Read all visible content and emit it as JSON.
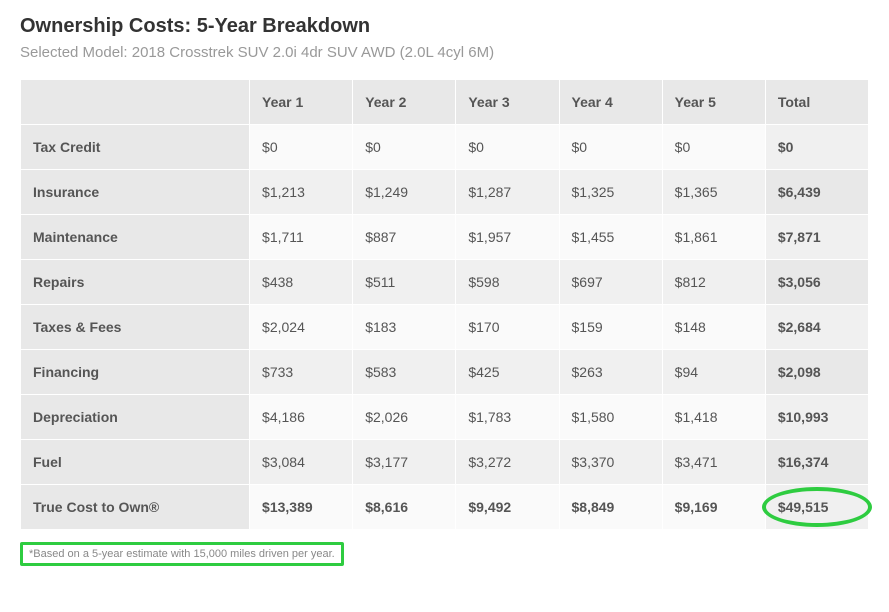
{
  "header": {
    "title": "Ownership Costs: 5-Year Breakdown",
    "subtitle": "Selected Model: 2018 Crosstrek SUV 2.0i 4dr SUV AWD (2.0L 4cyl 6M)"
  },
  "table": {
    "columns": [
      "",
      "Year 1",
      "Year 2",
      "Year 3",
      "Year 4",
      "Year 5",
      "Total"
    ],
    "rows": [
      {
        "label": "Tax Credit",
        "y1": "$0",
        "y2": "$0",
        "y3": "$0",
        "y4": "$0",
        "y5": "$0",
        "total": "$0"
      },
      {
        "label": "Insurance",
        "y1": "$1,213",
        "y2": "$1,249",
        "y3": "$1,287",
        "y4": "$1,325",
        "y5": "$1,365",
        "total": "$6,439"
      },
      {
        "label": "Maintenance",
        "y1": "$1,711",
        "y2": "$887",
        "y3": "$1,957",
        "y4": "$1,455",
        "y5": "$1,861",
        "total": "$7,871"
      },
      {
        "label": "Repairs",
        "y1": "$438",
        "y2": "$511",
        "y3": "$598",
        "y4": "$697",
        "y5": "$812",
        "total": "$3,056"
      },
      {
        "label": "Taxes & Fees",
        "y1": "$2,024",
        "y2": "$183",
        "y3": "$170",
        "y4": "$159",
        "y5": "$148",
        "total": "$2,684"
      },
      {
        "label": "Financing",
        "y1": "$733",
        "y2": "$583",
        "y3": "$425",
        "y4": "$263",
        "y5": "$94",
        "total": "$2,098"
      },
      {
        "label": "Depreciation",
        "y1": "$4,186",
        "y2": "$2,026",
        "y3": "$1,783",
        "y4": "$1,580",
        "y5": "$1,418",
        "total": "$10,993"
      },
      {
        "label": "Fuel",
        "y1": "$3,084",
        "y2": "$3,177",
        "y3": "$3,272",
        "y4": "$3,370",
        "y5": "$3,471",
        "total": "$16,374"
      },
      {
        "label": "True Cost to Own®",
        "y1": "$13,389",
        "y2": "$8,616",
        "y3": "$9,492",
        "y4": "$8,849",
        "y5": "$9,169",
        "total": "$49,515",
        "is_total_row": true,
        "highlight_total": true
      }
    ]
  },
  "footnote": "*Based on a 5-year estimate with 15,000 miles driven per year.",
  "colors": {
    "highlight": "#2ecc40",
    "header_bg": "#e8e8e8",
    "row_light": "#fafafa",
    "row_dark": "#f0f0f0",
    "text_primary": "#333333",
    "text_secondary": "#999999"
  }
}
